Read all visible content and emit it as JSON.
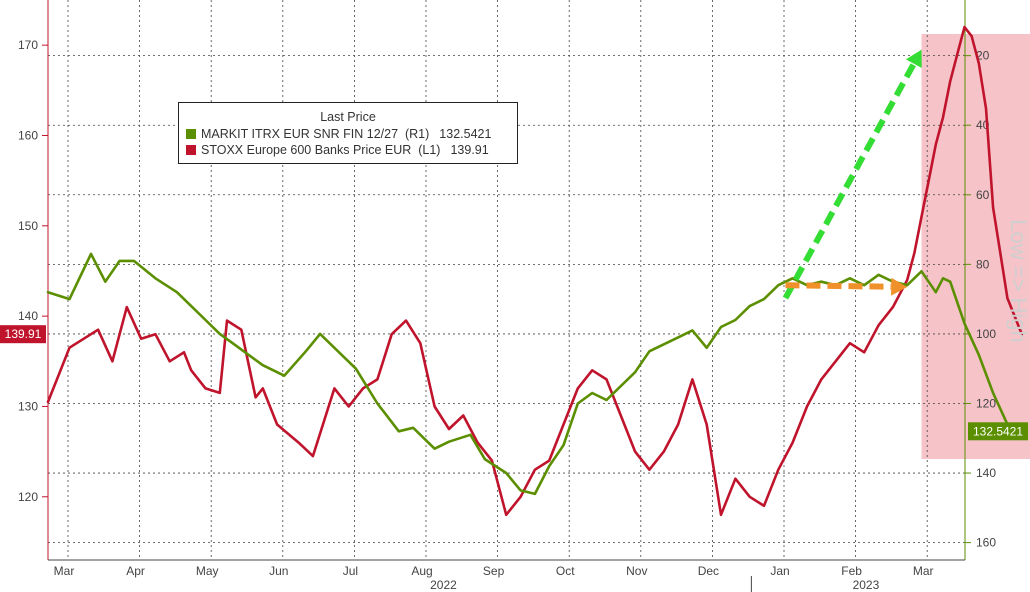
{
  "chart_data": {
    "type": "line",
    "legend": {
      "title": "Last Price",
      "placement": "top-left",
      "entries": [
        {
          "name": "MARKIT ITRX EUR SNR FIN 12/27  (R1)",
          "value": "132.5421",
          "color": "#5b8f00"
        },
        {
          "name": "STOXX Europe 600 Banks Price EUR  (L1)",
          "value": "139.91",
          "color": "#c0142d"
        }
      ]
    },
    "right_axis_label": "Low => High",
    "left_axis": {
      "ylim": [
        113,
        175
      ],
      "ticks": [
        120,
        130,
        140,
        150,
        160,
        170
      ]
    },
    "right_axis": {
      "ylim": [
        165,
        4
      ],
      "ticks": [
        20,
        40,
        60,
        80,
        100,
        120,
        140,
        160
      ],
      "inverted": true
    },
    "x_months": [
      "Mar",
      "Apr",
      "May",
      "Jun",
      "Jul",
      "Aug",
      "Sep",
      "Oct",
      "Nov",
      "Dec",
      "Jan",
      "Feb",
      "Mar"
    ],
    "x_years": [
      "2022",
      "2023"
    ],
    "last_value_tags": {
      "left": "139.91",
      "right": "132.5421"
    },
    "grid": true,
    "series": [
      {
        "name": "STOXX Europe 600 Banks Price EUR  (L1)",
        "axis": "left",
        "color": "#c0142d",
        "x": [
          0.0,
          0.3,
          0.5,
          0.7,
          0.9,
          1.0,
          1.1,
          1.3,
          1.5,
          1.7,
          1.9,
          2.0,
          2.2,
          2.4,
          2.5,
          2.7,
          2.9,
          3.0,
          3.2,
          3.5,
          3.7,
          4.0,
          4.2,
          4.4,
          4.6,
          4.8,
          5.0,
          5.2,
          5.4,
          5.6,
          5.8,
          6.0,
          6.2,
          6.4,
          6.6,
          6.8,
          7.0,
          7.2,
          7.4,
          7.6,
          7.8,
          8.0,
          8.2,
          8.4,
          8.6,
          8.8,
          9.0,
          9.2,
          9.4,
          9.6,
          9.8,
          10.0,
          10.2,
          10.4,
          10.6,
          10.8,
          11.0,
          11.2,
          11.4,
          11.6,
          11.8,
          12.0,
          12.1,
          12.2,
          12.3,
          12.4,
          12.5,
          12.6,
          12.7,
          12.8,
          12.9,
          13.0,
          13.1,
          13.2,
          13.3,
          13.4,
          13.6
        ],
        "values": [
          130.5,
          136.5,
          137.5,
          138.5,
          135,
          138,
          141,
          137.5,
          138,
          135,
          136,
          134,
          132,
          131.5,
          139.5,
          138.5,
          131,
          132,
          128,
          126,
          124.5,
          132,
          130,
          132,
          133,
          138,
          139.5,
          137,
          130,
          127.5,
          129,
          126,
          124,
          118,
          120,
          123,
          124,
          128,
          132,
          134,
          133,
          129,
          125,
          123,
          125,
          128,
          133,
          128,
          118,
          122,
          120,
          119,
          123,
          126,
          130,
          133,
          135,
          137,
          136,
          139,
          141,
          144,
          147,
          151,
          155,
          159,
          162,
          166,
          169,
          172,
          171,
          168,
          163,
          152,
          147,
          142,
          138
        ]
      },
      {
        "name": "MARKIT ITRX EUR SNR FIN 12/27  (R1)",
        "axis": "right",
        "color": "#5b8f00",
        "x": [
          0.0,
          0.3,
          0.6,
          0.8,
          1.0,
          1.2,
          1.5,
          1.8,
          2.0,
          2.2,
          2.4,
          2.6,
          2.8,
          3.0,
          3.3,
          3.6,
          3.8,
          4.0,
          4.3,
          4.6,
          4.9,
          5.1,
          5.4,
          5.6,
          5.9,
          6.1,
          6.4,
          6.6,
          6.8,
          7.0,
          7.2,
          7.4,
          7.6,
          7.8,
          8.0,
          8.2,
          8.4,
          8.6,
          8.8,
          9.0,
          9.2,
          9.4,
          9.6,
          9.8,
          10.0,
          10.2,
          10.4,
          10.6,
          10.8,
          11.0,
          11.2,
          11.4,
          11.6,
          11.8,
          12.0,
          12.2,
          12.4,
          12.5,
          12.6,
          12.8,
          13.0,
          13.2,
          13.4,
          13.6
        ],
        "values": [
          88,
          90,
          77,
          85,
          79,
          79,
          84,
          88,
          92,
          96,
          100,
          103,
          106,
          109,
          112,
          105,
          100,
          104,
          110,
          120,
          128,
          127,
          133,
          131,
          129,
          136,
          140,
          145,
          146,
          138,
          132,
          120,
          117,
          119,
          115,
          111,
          105,
          103,
          101,
          99,
          104,
          98,
          96,
          92,
          90,
          86,
          84,
          86,
          85,
          86,
          84,
          86,
          83,
          85,
          86,
          82,
          88,
          84,
          85,
          97,
          106,
          117,
          126,
          128
        ]
      }
    ],
    "annotations": [
      {
        "type": "arrow",
        "color": "#33dd33",
        "style": "dashed",
        "from": {
          "x": 10.3,
          "y": 142
        },
        "to": {
          "x": 12.2,
          "y": 169.5
        },
        "axis": "left"
      },
      {
        "type": "arrow",
        "color": "#f0902a",
        "style": "dashed",
        "from": {
          "x": 10.3,
          "y": 86
        },
        "to": {
          "x": 12.0,
          "y": 86.5
        },
        "axis": "right"
      },
      {
        "type": "shaded_region",
        "color": "#f4b9bf",
        "x_range": [
          12.2,
          13.9
        ]
      }
    ]
  }
}
